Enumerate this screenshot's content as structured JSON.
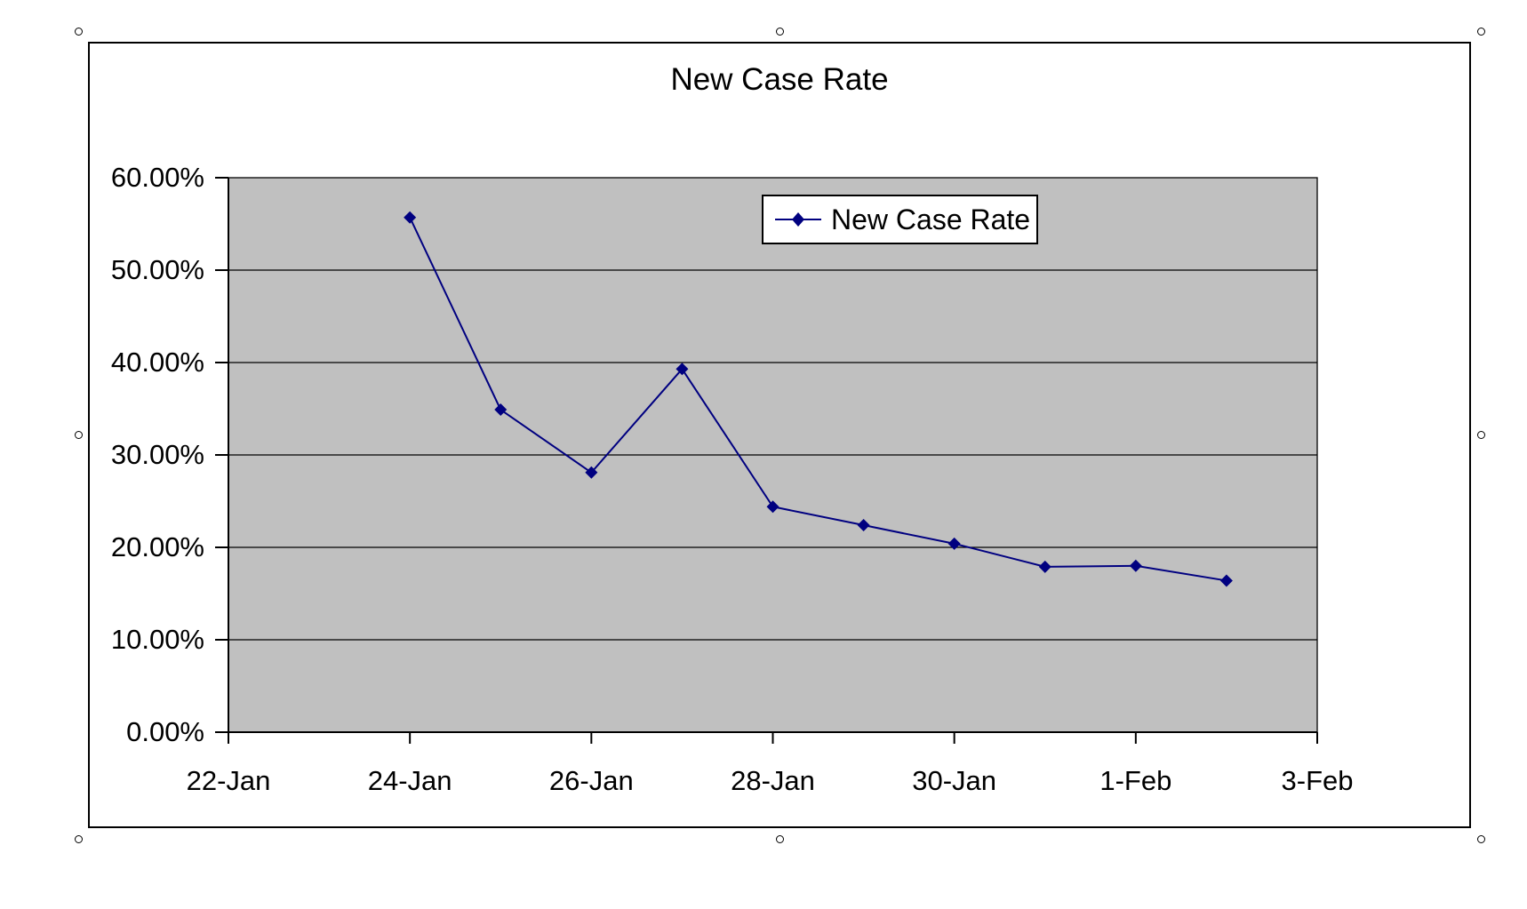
{
  "chart": {
    "title": "New Case Rate",
    "legend_label": "New Case Rate"
  },
  "colors": {
    "series_line": "#000080",
    "marker": "#000080",
    "plot_background": "#C0C0C0",
    "chart_background": "#FFFFFF",
    "grid_line": "#000000",
    "axis_line": "#000000",
    "text": "#000000"
  },
  "chart_data": {
    "type": "line",
    "title": "New Case Rate",
    "series": [
      {
        "name": "New Case Rate",
        "x": [
          "24-Jan",
          "25-Jan",
          "26-Jan",
          "27-Jan",
          "28-Jan",
          "29-Jan",
          "30-Jan",
          "31-Jan",
          "1-Feb",
          "2-Feb"
        ],
        "values_percent": [
          55.7,
          34.9,
          28.1,
          39.3,
          24.4,
          22.4,
          20.4,
          17.9,
          18.0,
          16.4
        ]
      }
    ],
    "x_axis": {
      "tick_labels": [
        "22-Jan",
        "24-Jan",
        "26-Jan",
        "28-Jan",
        "30-Jan",
        "1-Feb",
        "3-Feb"
      ],
      "range": [
        "22-Jan",
        "3-Feb"
      ],
      "major_unit_days": 2
    },
    "y_axis": {
      "tick_labels": [
        "60.00%",
        "50.00%",
        "40.00%",
        "30.00%",
        "20.00%",
        "10.00%",
        "0.00%"
      ],
      "min_percent": 0,
      "max_percent": 60,
      "major_unit_percent": 10
    },
    "grid": "horizontal",
    "marker": "diamond",
    "legend": {
      "position": "inside-top-center",
      "entries": [
        "New Case Rate"
      ]
    },
    "selection_handle_count": 8
  }
}
